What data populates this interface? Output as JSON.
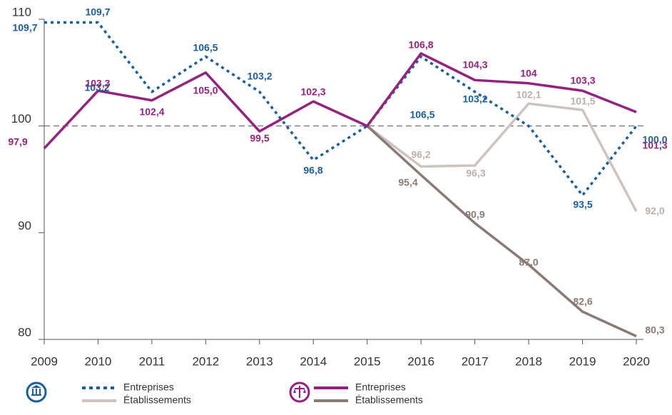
{
  "chart_data": {
    "type": "line",
    "categories": [
      "2009",
      "2010",
      "2011",
      "2012",
      "2013",
      "2014",
      "2015",
      "2016",
      "2017",
      "2018",
      "2019",
      "2020"
    ],
    "series": [
      {
        "name": "Entreprises",
        "color": "#1a5e9a",
        "dash": "dotted",
        "values": [
          109.7,
          109.7,
          103.2,
          106.5,
          103.2,
          96.8,
          100,
          106.5,
          103.2,
          100,
          93.5,
          100.0
        ],
        "value_labels": [
          "109,7",
          "109,7",
          "103,2",
          "106,5",
          "103,2",
          "96,8",
          null,
          "106,5",
          "103,2",
          null,
          "93,5",
          "100,0"
        ]
      },
      {
        "name": "Établissements",
        "color": "#cdc3c1",
        "values": [
          null,
          null,
          null,
          null,
          null,
          null,
          100,
          96.2,
          96.3,
          102.1,
          101.5,
          92.0
        ],
        "value_labels": [
          null,
          null,
          null,
          null,
          null,
          null,
          null,
          "96,2",
          "96,3",
          "102,1",
          "101,5",
          "92,0"
        ]
      },
      {
        "name": "Entreprises",
        "color": "#93237f",
        "values": [
          97.9,
          103.3,
          102.4,
          105.0,
          99.5,
          102.3,
          100,
          106.8,
          104.3,
          104,
          103.3,
          101.3
        ],
        "value_labels": [
          "97,9",
          "103,3",
          "102,4",
          "105,0",
          "99,5",
          "102,3",
          null,
          "106,8",
          "104,3",
          "104",
          "103,3",
          "101,3"
        ]
      },
      {
        "name": "Établissements",
        "color": "#8a7a76",
        "values": [
          null,
          null,
          null,
          null,
          null,
          null,
          100,
          95.4,
          90.9,
          87.0,
          82.6,
          80.3
        ],
        "value_labels": [
          null,
          null,
          null,
          null,
          null,
          null,
          null,
          "95,4",
          "90,9",
          "87,0",
          "82,6",
          "80,3"
        ]
      }
    ],
    "ylim": [
      80,
      110
    ],
    "yticks": [
      80,
      90,
      100,
      110
    ],
    "reference_line": 100,
    "grid": false
  }
}
